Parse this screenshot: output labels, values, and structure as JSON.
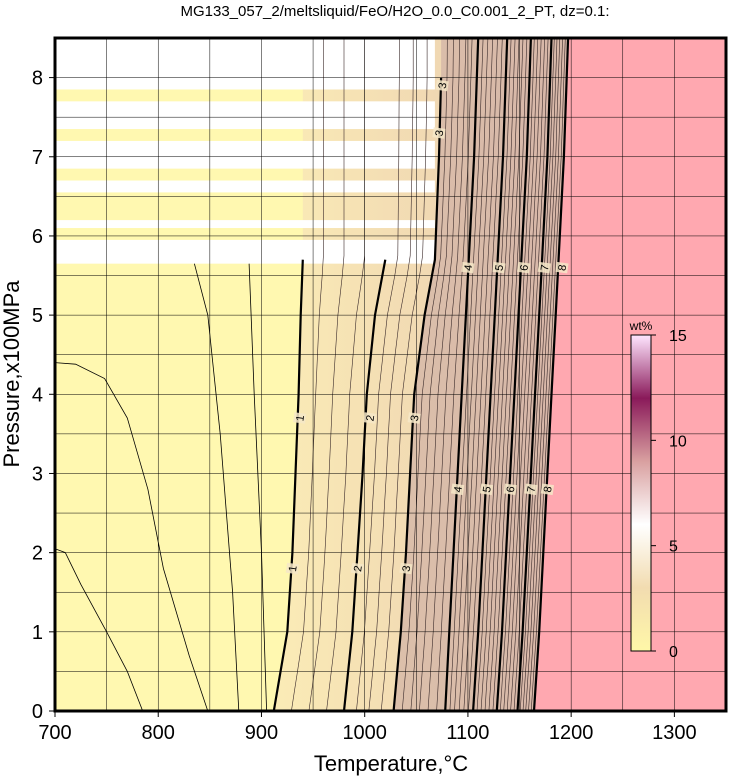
{
  "chart_data": {
    "type": "heatmap",
    "title": "MG133_057_2/meltsliquid/FeO/H2O_0.0_C0.001_2_PT, dz=0.1:",
    "xlabel": "Temperature,°C",
    "ylabel": "Pressure,x100MPa",
    "xlim": [
      700,
      1350
    ],
    "ylim": [
      0,
      8.5
    ],
    "xticks": [
      "700",
      "800",
      "900",
      "1000",
      "1100",
      "1200",
      "1300"
    ],
    "yticks": [
      "0",
      "1",
      "2",
      "3",
      "4",
      "5",
      "6",
      "7",
      "8"
    ],
    "grid": true,
    "colorbar": {
      "label": "wt%",
      "min": 0,
      "max": 15,
      "ticks": [
        "0",
        "5",
        "10",
        "15"
      ],
      "placement": "right-inside",
      "colors": [
        "#fff7a8",
        "#f2dcb0",
        "#ffffff",
        "#d9a0a0",
        "#8a1a5a",
        "#ffe6ff"
      ]
    },
    "background_color": "#fff8b0",
    "high_region_color": "#ffa8b0",
    "major_contours": [
      {
        "level": "1",
        "points": [
          [
            912,
            0
          ],
          [
            925,
            1
          ],
          [
            930,
            2
          ],
          [
            933,
            3
          ],
          [
            936,
            4
          ],
          [
            938,
            5
          ],
          [
            940,
            5.7
          ]
        ],
        "labels": [
          [
            930,
            1.8
          ],
          [
            937,
            3.7
          ]
        ]
      },
      {
        "level": "2",
        "points": [
          [
            980,
            0
          ],
          [
            988,
            1
          ],
          [
            993,
            2
          ],
          [
            998,
            3
          ],
          [
            1002,
            4
          ],
          [
            1010,
            5
          ],
          [
            1020,
            5.7
          ]
        ],
        "labels": [
          [
            993,
            1.8
          ],
          [
            1005,
            3.7
          ]
        ]
      },
      {
        "level": "3",
        "points": [
          [
            1028,
            0
          ],
          [
            1035,
            1
          ],
          [
            1040,
            2
          ],
          [
            1044,
            3
          ],
          [
            1048,
            4
          ],
          [
            1058,
            5
          ],
          [
            1068,
            5.7
          ],
          [
            1072,
            7
          ],
          [
            1074,
            8
          ]
        ],
        "labels": [
          [
            1040,
            1.8
          ],
          [
            1048,
            3.7
          ],
          [
            1072,
            7.3
          ],
          [
            1075,
            7.9
          ]
        ]
      },
      {
        "level": "4",
        "points": [
          [
            1078,
            0
          ],
          [
            1082,
            1
          ],
          [
            1086,
            2
          ],
          [
            1090,
            3
          ],
          [
            1094,
            4
          ],
          [
            1098,
            5
          ],
          [
            1102,
            6
          ],
          [
            1106,
            7
          ],
          [
            1110,
            8.5
          ]
        ],
        "labels": [
          [
            1090,
            2.8
          ],
          [
            1100,
            5.6
          ]
        ]
      },
      {
        "level": "5",
        "points": [
          [
            1105,
            0
          ],
          [
            1110,
            1
          ],
          [
            1114,
            2
          ],
          [
            1118,
            3
          ],
          [
            1122,
            4
          ],
          [
            1126,
            5
          ],
          [
            1130,
            6
          ],
          [
            1134,
            7
          ],
          [
            1138,
            8.5
          ]
        ],
        "labels": [
          [
            1118,
            2.8
          ],
          [
            1130,
            5.6
          ]
        ]
      },
      {
        "level": "6",
        "points": [
          [
            1128,
            0
          ],
          [
            1133,
            1
          ],
          [
            1137,
            2
          ],
          [
            1141,
            3
          ],
          [
            1145,
            4
          ],
          [
            1149,
            5
          ],
          [
            1153,
            6
          ],
          [
            1157,
            7
          ],
          [
            1161,
            8.5
          ]
        ],
        "labels": [
          [
            1141,
            2.8
          ],
          [
            1154,
            5.6
          ]
        ]
      },
      {
        "level": "7",
        "points": [
          [
            1148,
            0
          ],
          [
            1153,
            1
          ],
          [
            1157,
            2
          ],
          [
            1161,
            3
          ],
          [
            1165,
            4
          ],
          [
            1169,
            5
          ],
          [
            1173,
            6
          ],
          [
            1177,
            7
          ],
          [
            1181,
            8.5
          ]
        ],
        "labels": [
          [
            1161,
            2.8
          ],
          [
            1174,
            5.6
          ]
        ]
      },
      {
        "level": "8",
        "points": [
          [
            1164,
            0
          ],
          [
            1169,
            1
          ],
          [
            1173,
            2
          ],
          [
            1177,
            3
          ],
          [
            1181,
            4
          ],
          [
            1185,
            5
          ],
          [
            1189,
            6
          ],
          [
            1193,
            7
          ],
          [
            1197,
            8.5
          ]
        ],
        "labels": [
          [
            1177,
            2.8
          ],
          [
            1191,
            5.6
          ]
        ]
      }
    ],
    "minor_contours": [
      [
        [
          785,
          0
        ],
        [
          770,
          0.5
        ],
        [
          750,
          1.0
        ],
        [
          725,
          1.6
        ],
        [
          710,
          2.0
        ],
        [
          700,
          2.05
        ]
      ],
      [
        [
          848,
          0
        ],
        [
          830,
          0.7
        ],
        [
          805,
          1.8
        ],
        [
          790,
          2.8
        ],
        [
          770,
          3.7
        ],
        [
          748,
          4.2
        ],
        [
          720,
          4.38
        ],
        [
          700,
          4.4
        ]
      ],
      [
        [
          878,
          0
        ],
        [
          872,
          1.5
        ],
        [
          860,
          3.5
        ],
        [
          848,
          5.0
        ],
        [
          835,
          5.65
        ]
      ],
      [
        [
          905,
          0
        ],
        [
          900,
          2
        ],
        [
          893,
          4
        ],
        [
          888,
          5.65
        ]
      ]
    ],
    "white_bands_y": [
      [
        5.65,
        5.95
      ],
      [
        6.1,
        6.2
      ],
      [
        6.55,
        6.7
      ],
      [
        6.85,
        7.2
      ],
      [
        7.35,
        7.7
      ],
      [
        7.85,
        8.5
      ]
    ],
    "white_band_xmax": 1068
  }
}
